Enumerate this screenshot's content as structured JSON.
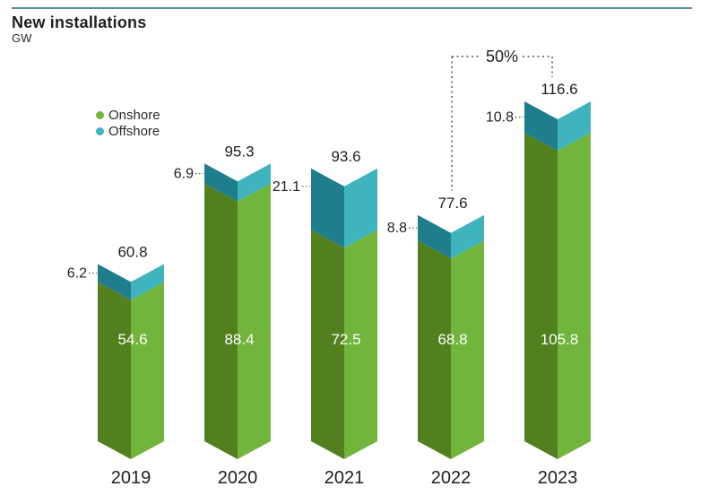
{
  "header": {
    "title": "New installations",
    "unit": "GW"
  },
  "legend": [
    {
      "label": "Onshore",
      "color": "#72b53c"
    },
    {
      "label": "Offshore",
      "color": "#3fb4bf"
    }
  ],
  "chart_data": {
    "type": "bar",
    "stacked": true,
    "title": "New installations",
    "ylabel": "GW",
    "categories": [
      "2019",
      "2020",
      "2021",
      "2022",
      "2023"
    ],
    "series": [
      {
        "name": "Onshore",
        "values": [
          54.6,
          88.4,
          72.5,
          68.8,
          105.8
        ],
        "color_dark": "#53801f",
        "color_light": "#72b53c"
      },
      {
        "name": "Offshore",
        "values": [
          6.2,
          6.9,
          21.1,
          8.8,
          10.8
        ],
        "color_dark": "#1f7e8c",
        "color_light": "#3fb4bf"
      }
    ],
    "totals": [
      60.8,
      95.3,
      93.6,
      77.6,
      116.6
    ],
    "annotation": {
      "text": "50%",
      "from": "2022",
      "to": "2023"
    },
    "legend_position": "top-left",
    "grid": false,
    "axes_hidden": true,
    "value_labels": {
      "inside": "onshore",
      "above": "total",
      "left_of_top": "offshore"
    }
  },
  "colors": {
    "rule": "#5e8ca6",
    "text": "#1f1f1f",
    "inside_label": "#ffffff",
    "dotted": "#555555"
  }
}
